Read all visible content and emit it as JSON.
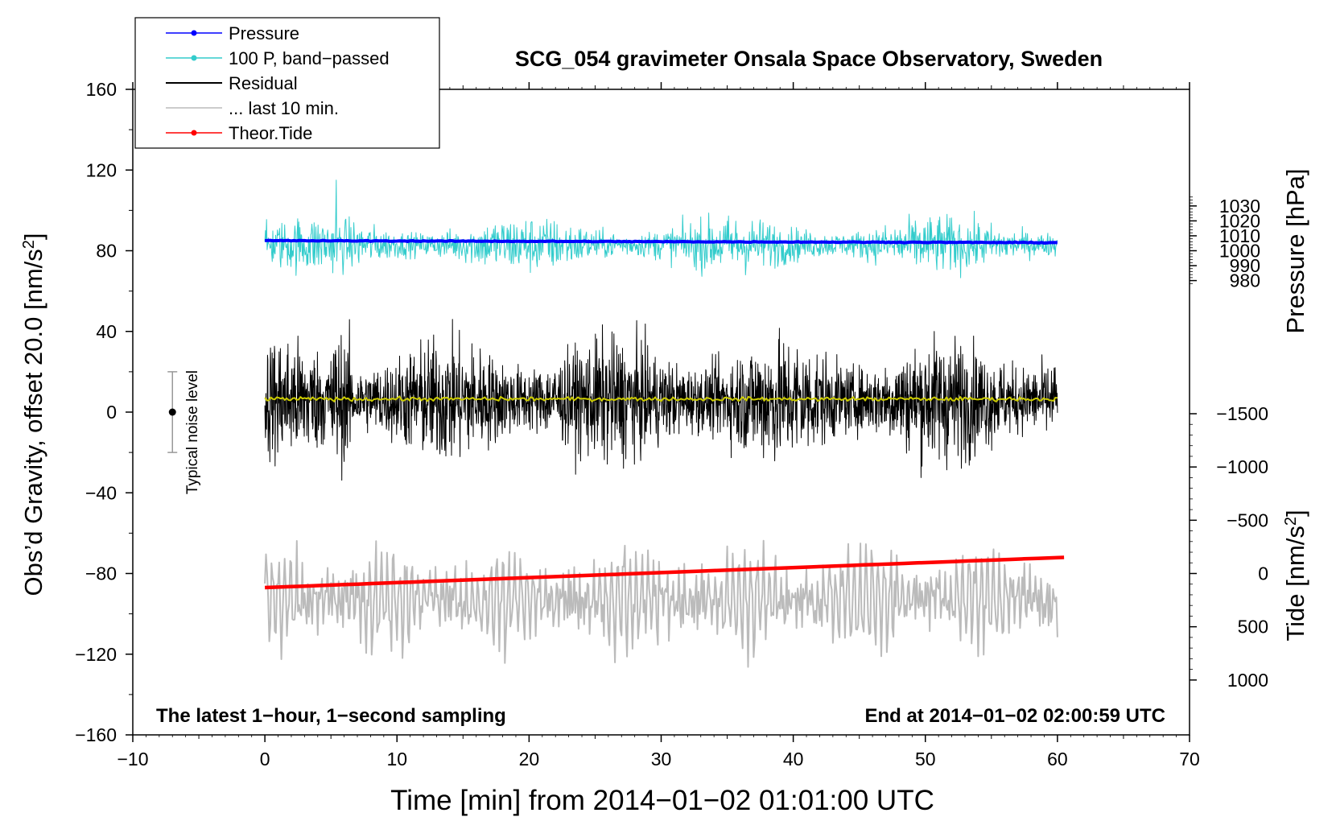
{
  "chart_data": {
    "type": "line",
    "title": "SCG_054 gravimeter Onsala Space Observatory, Sweden",
    "xlabel": "Time [min] from 2014−01−02 01:01:00 UTC",
    "ylabel_left": "Obs’d Gravity, offset 20.0 [nm/s",
    "ylabel_left_sup": "2",
    "ylabel_left_end": "]",
    "ylabel_right_pressure": "Pressure [hPa]",
    "ylabel_right_tide": "Tide [nm/s",
    "ylabel_right_tide_sup": "2",
    "ylabel_right_tide_end": "]",
    "xlim": [
      -10,
      70
    ],
    "ylim_left": [
      -160,
      160
    ],
    "x_ticks": [
      "−10",
      "0",
      "10",
      "20",
      "30",
      "40",
      "50",
      "60",
      "70"
    ],
    "x_tick_values": [
      -10,
      0,
      10,
      20,
      30,
      40,
      50,
      60,
      70
    ],
    "y_left_ticks": [
      "160",
      "120",
      "80",
      "40",
      "0",
      "−40",
      "−80",
      "−120",
      "−160"
    ],
    "y_left_tick_values": [
      160,
      120,
      80,
      40,
      0,
      -40,
      -80,
      -120,
      -160
    ],
    "y_pressure_ticks": [
      "1030",
      "1020",
      "1010",
      "1000",
      "990",
      "980"
    ],
    "y_pressure_tick_values": [
      1030,
      1020,
      1010,
      1000,
      990,
      980
    ],
    "y_tide_ticks": [
      "1000",
      "500",
      "0",
      "−500",
      "−1000",
      "−1500"
    ],
    "y_tide_tick_values": [
      1000,
      500,
      0,
      -500,
      -1000,
      -1500
    ],
    "legend": [
      {
        "name": "Pressure",
        "color": "#0000ff",
        "marker": true
      },
      {
        "name": "100 P, band−passed",
        "color": "#33cccc",
        "marker": true
      },
      {
        "name": "Residual",
        "color": "#000000",
        "marker": false
      },
      {
        "name": "... last 10 min.",
        "color": "#bbbbbb",
        "marker": false
      },
      {
        "name": "Theor.Tide",
        "color": "#ff0000",
        "marker": true
      }
    ],
    "series": [
      {
        "name": "Pressure",
        "axis": "left",
        "color": "#0000ff",
        "x_range": [
          0,
          60
        ],
        "start": 85,
        "end": 84
      },
      {
        "name": "100 P, band−passed",
        "axis": "left",
        "color": "#33cccc",
        "x_range": [
          0,
          60
        ],
        "center": 83,
        "amplitude": 10,
        "extreme_max": 115,
        "extreme_min": 53
      },
      {
        "name": "Residual",
        "axis": "left",
        "color": "#000000",
        "x_range": [
          0,
          60
        ],
        "center": 6,
        "amplitude": 22,
        "extreme_max": 62,
        "extreme_min": -46
      },
      {
        "name": "Residual mean",
        "axis": "left",
        "color": "#cccc00",
        "x_range": [
          0,
          60
        ],
        "value": 6.5
      },
      {
        "name": "... last 10 min.",
        "axis": "left",
        "color": "#bbbbbb",
        "x_range": [
          0,
          60
        ],
        "center": -93,
        "amplitude": 20,
        "extreme_max": -50,
        "extreme_min": -142
      },
      {
        "name": "Theor.Tide",
        "axis": "left",
        "color": "#ff0000",
        "x_range": [
          0,
          60.5
        ],
        "start": -87,
        "end": -72
      }
    ],
    "noise_level": {
      "label": "Typical noise level",
      "x": -7,
      "center": 0,
      "low": -20,
      "high": 20
    },
    "annotations": {
      "bottom_left": "The latest 1−hour, 1−second sampling",
      "bottom_right": "End at 2014−01−02 02:00:59 UTC"
    }
  }
}
